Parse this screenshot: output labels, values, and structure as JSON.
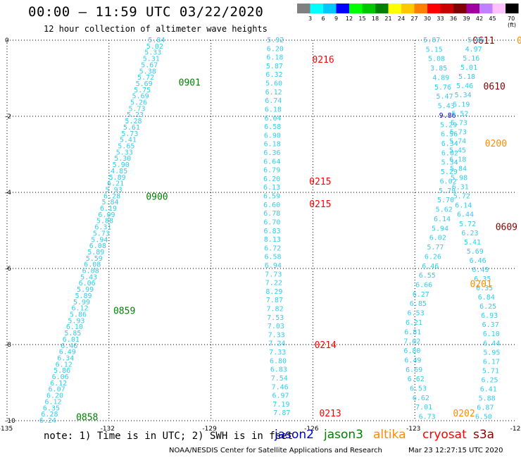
{
  "header": {
    "title": "00:00 – 11:59 UTC 03/22/2020",
    "subtitle": "12 hour collection of altimeter wave heights"
  },
  "colorbar": {
    "colors": [
      "#808080",
      "#00ffff",
      "#00c8ff",
      "#0000ff",
      "#00ff00",
      "#00c800",
      "#008000",
      "#ffff00",
      "#ffc800",
      "#ff8000",
      "#ff0000",
      "#c80000",
      "#800000",
      "#a000a0",
      "#c080ff",
      "#ffc0ff",
      "#000000"
    ],
    "labels": [
      "3",
      "6",
      "9",
      "12",
      "15",
      "18",
      "21",
      "24",
      "27",
      "30",
      "33",
      "36",
      "39",
      "42",
      "45",
      "70 (ft)"
    ]
  },
  "note": "note:  1) Time is in UTC;  2) SWH is in feet",
  "legend": [
    {
      "name": "jason2",
      "color": "#0000cc"
    },
    {
      "name": "jason3",
      "color": "#008000"
    },
    {
      "name": "altika",
      "color": "#ff8c00"
    },
    {
      "name": "cryosat",
      "color": "#ff0000"
    },
    {
      "name": "s3a",
      "color": "#8b0000"
    }
  ],
  "footer": {
    "credit": "NOAA/NESDIS Center for Satellite Applications and Research",
    "timestamp": "Mar 23 12:27:15 UTC 2020"
  },
  "chart_data": {
    "type": "scatter",
    "x_axis": {
      "ticks": [
        "-135",
        "-132",
        "-129",
        "-126",
        "-123",
        "-12"
      ],
      "range": [
        -135,
        -120
      ]
    },
    "y_axis": {
      "ticks": [
        "0",
        "-2",
        "-4",
        "-6",
        "-8",
        "-10"
      ],
      "range": [
        -10,
        0
      ]
    },
    "grid": true,
    "tracks": [
      {
        "name": "track-1",
        "color": "#33ccee",
        "values": [
          "5.84",
          "5.02",
          "5.33",
          "5.31",
          "5.67",
          "5.38",
          "5.72",
          "5.69",
          "5.75",
          "5.69",
          "5.26",
          "5.73",
          "5.23",
          "5.28",
          "5.61",
          "5.73",
          "5.41",
          "5.65",
          "5.33",
          "5.30",
          "5.90",
          "4.85",
          "5.89",
          "6.21",
          "5.93",
          "6.28",
          "5.84",
          "6.19",
          "6.09",
          "5.88",
          "6.31",
          "5.73",
          "5.94",
          "6.08",
          "5.89",
          "5.59",
          "6.08",
          "6.08",
          "5.43",
          "6.06",
          "5.99",
          "5.89",
          "5.99",
          "6.12",
          "5.86",
          "5.93",
          "6.10",
          "5.85",
          "6.01",
          "6.46",
          "6.49",
          "6.34",
          "6.12",
          "5.86",
          "6.06",
          "6.12",
          "6.07",
          "6.20",
          "6.12",
          "6.35",
          "6.28",
          "6.24"
        ],
        "time_labels": [
          {
            "text": "0901",
            "lat": -1.1,
            "lon_offset": 1.0,
            "color": "#008000"
          },
          {
            "text": "0900",
            "lat": -4.1,
            "lon_offset": 1.0,
            "color": "#008000"
          },
          {
            "text": "0859",
            "lat": -7.1,
            "lon_offset": 1.0,
            "color": "#008000"
          },
          {
            "text": "0858",
            "lat": -9.9,
            "lon_offset": 0.8,
            "color": "#008000"
          }
        ]
      },
      {
        "name": "track-2",
        "color": "#33ccee",
        "values": [
          "5.92",
          "6.20",
          "6.18",
          "5.87",
          "6.32",
          "5.60",
          "6.12",
          "6.74",
          "6.18",
          "6.04",
          "6.58",
          "6.90",
          "6.18",
          "6.36",
          "6.64",
          "6.79",
          "6.20",
          "6.13",
          "6.59",
          "6.60",
          "6.78",
          "6.70",
          "6.83",
          "8.13",
          "6.72",
          "6.58",
          "6.94",
          "7.73",
          "7.22",
          "8.29",
          "7.87",
          "7.82",
          "7.53",
          "7.03",
          "7.33",
          "7.24",
          "7.33",
          "6.80",
          "6.83",
          "7.54",
          "7.46",
          "6.97",
          "7.19",
          "7.87"
        ],
        "time_labels": [
          {
            "text": "0216",
            "lat": -0.5,
            "lon_offset": 1.1,
            "color": "#ff0000"
          },
          {
            "text": "0215",
            "lat": -3.7,
            "lon_offset": 1.1,
            "color": "#ff0000"
          },
          {
            "text": "0215",
            "lat": -4.3,
            "lon_offset": 1.1,
            "color": "#ff0000"
          },
          {
            "text": "0214",
            "lat": -8.0,
            "lon_offset": 1.1,
            "color": "#ff0000"
          },
          {
            "text": "0213",
            "lat": -9.8,
            "lon_offset": 1.1,
            "color": "#ff0000"
          }
        ]
      },
      {
        "name": "track-3",
        "color": "#33ccee",
        "values": [
          "5.87",
          "5.15",
          "5.08",
          "3.85",
          "4.89",
          "5.76",
          "5.47",
          "5.43",
          "9.86",
          "5.29",
          "6.56",
          "6.34",
          "6.02",
          "5.34",
          "5.29",
          "6.02",
          "5.79",
          "5.70",
          "5.62",
          "6.14",
          "5.94",
          "6.02",
          "5.77",
          "6.26",
          "6.46",
          "6.55",
          "6.66",
          "6.27",
          "6.85",
          "6.53",
          "6.21",
          "6.81",
          "7.02",
          "6.80",
          "6.49",
          "6.69",
          "6.62",
          "6.53",
          "6.62",
          "7.01",
          "6.73"
        ],
        "time_labels": [
          {
            "text": "0611",
            "lat": 0.0,
            "lon_offset": 1.2,
            "color": "#8b0000"
          },
          {
            "text": "0610",
            "lat": -1.2,
            "lon_offset": 1.2,
            "color": "#8b0000"
          },
          {
            "text": "0202",
            "lat": -9.8,
            "lon_offset": 0.8,
            "color": "#ff8c00"
          }
        ]
      },
      {
        "name": "track-4",
        "color": "#33ccee",
        "values": [
          "5.06",
          "4.97",
          "5.16",
          "5.01",
          "5.18",
          "5.46",
          "5.34",
          "5.19",
          "5.52",
          "5.73",
          "5.73",
          "5.74",
          "5.45",
          "6.18",
          "5.84",
          "5.98",
          "6.31",
          "5.72",
          "6.14",
          "6.44",
          "5.72",
          "6.23",
          "5.41",
          "5.69",
          "6.46",
          "6.49",
          "6.35",
          "6.35",
          "6.84",
          "6.25",
          "6.93",
          "6.37",
          "6.10",
          "6.44",
          "5.95",
          "6.17",
          "5.71",
          "6.25",
          "6.41",
          "5.88",
          "6.87",
          "6.50"
        ],
        "time_labels": [
          {
            "text": "0",
            "lat": 0.0,
            "lon_offset": 1.2,
            "color": "#ff8c00"
          },
          {
            "text": "0200",
            "lat": -2.7,
            "lon_offset": 0.8,
            "color": "#ff8c00"
          },
          {
            "text": "0609",
            "lat": -4.9,
            "lon_offset": 0.8,
            "color": "#8b0000"
          },
          {
            "text": "0201",
            "lat": -6.4,
            "lon_offset": -0.4,
            "color": "#ff8c00"
          },
          {
            "text": "06",
            "lat": -8.4,
            "lon_offset": 1.1,
            "color": "#8b0000"
          }
        ]
      }
    ]
  }
}
